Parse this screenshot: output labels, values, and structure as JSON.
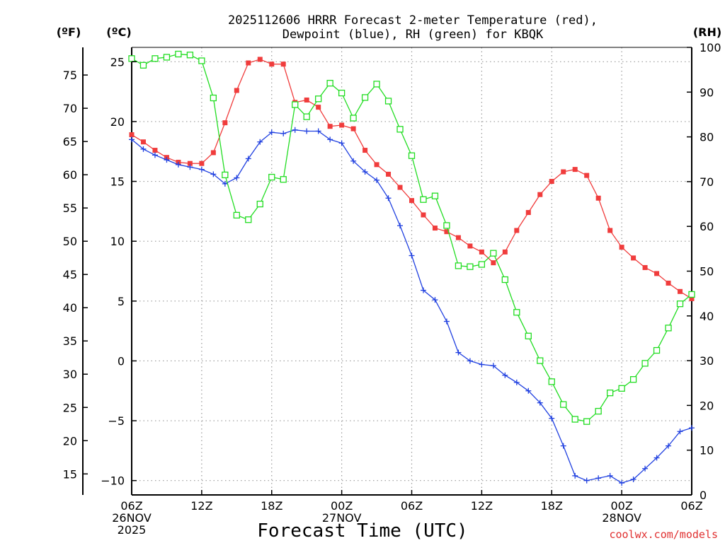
{
  "chart_data": {
    "type": "line",
    "title_line1": "2025112606 HRRR Forecast 2-meter Temperature (red),",
    "title_line2": "Dewpoint (blue), RH (green) for KBQK",
    "units": {
      "f": "(ºF)",
      "c": "(ºC)",
      "rh": "(RH)"
    },
    "xlabel": "Forecast Time (UTC)",
    "credit": "coolwx.com/models",
    "ylim_c": [
      -11.2,
      26.2
    ],
    "ylim_rh": [
      0,
      100
    ],
    "x_range_hours": [
      0,
      48
    ],
    "yticks_c": [
      {
        "v": 25,
        "label": "25"
      },
      {
        "v": 20,
        "label": "20"
      },
      {
        "v": 15,
        "label": "15"
      },
      {
        "v": 10,
        "label": "10"
      },
      {
        "v": 5,
        "label": "5"
      },
      {
        "v": 0,
        "label": "0"
      },
      {
        "v": -5,
        "label": "−5"
      },
      {
        "v": -10,
        "label": "−10"
      }
    ],
    "yticks_f": [
      {
        "v": 75,
        "label": "75"
      },
      {
        "v": 70,
        "label": "70"
      },
      {
        "v": 65,
        "label": "65"
      },
      {
        "v": 60,
        "label": "60"
      },
      {
        "v": 55,
        "label": "55"
      },
      {
        "v": 50,
        "label": "50"
      },
      {
        "v": 45,
        "label": "45"
      },
      {
        "v": 40,
        "label": "40"
      },
      {
        "v": 35,
        "label": "35"
      },
      {
        "v": 30,
        "label": "30"
      },
      {
        "v": 25,
        "label": "25"
      },
      {
        "v": 20,
        "label": "20"
      },
      {
        "v": 15,
        "label": "15"
      }
    ],
    "yticks_rh": [
      {
        "v": 100,
        "label": "100"
      },
      {
        "v": 90,
        "label": "90"
      },
      {
        "v": 80,
        "label": "80"
      },
      {
        "v": 70,
        "label": "70"
      },
      {
        "v": 60,
        "label": "60"
      },
      {
        "v": 50,
        "label": "50"
      },
      {
        "v": 40,
        "label": "40"
      },
      {
        "v": 30,
        "label": "30"
      },
      {
        "v": 20,
        "label": "20"
      },
      {
        "v": 10,
        "label": "10"
      },
      {
        "v": 0,
        "label": "0"
      }
    ],
    "xticks": [
      {
        "h": 0,
        "lines": [
          "06Z",
          "26NOV",
          "2025"
        ]
      },
      {
        "h": 6,
        "lines": [
          "12Z"
        ]
      },
      {
        "h": 12,
        "lines": [
          "18Z"
        ]
      },
      {
        "h": 18,
        "lines": [
          "00Z",
          "27NOV"
        ]
      },
      {
        "h": 24,
        "lines": [
          "06Z"
        ]
      },
      {
        "h": 30,
        "lines": [
          "12Z"
        ]
      },
      {
        "h": 36,
        "lines": [
          "18Z"
        ]
      },
      {
        "h": 42,
        "lines": [
          "00Z",
          "28NOV"
        ]
      },
      {
        "h": 48,
        "lines": [
          "06Z"
        ]
      }
    ],
    "hours": [
      0,
      1,
      2,
      3,
      4,
      5,
      6,
      7,
      8,
      9,
      10,
      11,
      12,
      13,
      14,
      15,
      16,
      17,
      18,
      19,
      20,
      21,
      22,
      23,
      24,
      25,
      26,
      27,
      28,
      29,
      30,
      31,
      32,
      33,
      34,
      35,
      36,
      37,
      38,
      39,
      40,
      41,
      42,
      43,
      44,
      45,
      46,
      47,
      48
    ],
    "series": [
      {
        "name": "2-meter Temperature",
        "axis": "c",
        "color": "#f03c3c",
        "marker": "filled-square",
        "values": [
          18.9,
          18.3,
          17.6,
          17.0,
          16.6,
          16.5,
          16.5,
          17.4,
          19.9,
          22.6,
          24.9,
          25.2,
          24.8,
          24.8,
          21.6,
          21.8,
          21.2,
          19.6,
          19.7,
          19.4,
          17.6,
          16.4,
          15.6,
          14.5,
          13.4,
          12.2,
          11.1,
          10.8,
          10.3,
          9.6,
          9.1,
          8.2,
          9.1,
          10.9,
          12.4,
          13.9,
          15.0,
          15.8,
          16.0,
          15.5,
          13.6,
          10.9,
          9.5,
          8.6,
          7.8,
          7.3,
          6.5,
          5.8,
          5.2
        ]
      },
      {
        "name": "Dewpoint",
        "axis": "c",
        "color": "#2040e0",
        "marker": "plus",
        "values": [
          18.5,
          17.7,
          17.2,
          16.8,
          16.4,
          16.2,
          16.0,
          15.6,
          14.8,
          15.3,
          16.9,
          18.3,
          19.1,
          19.0,
          19.3,
          19.2,
          19.2,
          18.5,
          18.2,
          16.7,
          15.8,
          15.1,
          13.6,
          11.3,
          8.8,
          5.9,
          5.1,
          3.3,
          0.7,
          0.0,
          -0.3,
          -0.4,
          -1.2,
          -1.8,
          -2.5,
          -3.5,
          -4.8,
          -7.1,
          -9.6,
          -10.0,
          -9.8,
          -9.6,
          -10.2,
          -9.9,
          -9.0,
          -8.1,
          -7.1,
          -5.9,
          -5.6
        ]
      },
      {
        "name": "RH",
        "axis": "rh",
        "color": "#22dd22",
        "marker": "open-square",
        "values": [
          97.5,
          96.0,
          97.5,
          97.8,
          98.5,
          98.3,
          97.0,
          88.7,
          71.5,
          62.5,
          61.5,
          65.0,
          71.0,
          70.5,
          87.2,
          84.5,
          88.5,
          92.0,
          89.8,
          84.2,
          88.8,
          91.8,
          88.0,
          81.7,
          75.8,
          66.0,
          66.8,
          60.2,
          51.2,
          51.0,
          51.5,
          54.0,
          48.1,
          40.8,
          35.5,
          30.0,
          25.3,
          20.2,
          16.9,
          16.4,
          18.7,
          22.8,
          23.8,
          25.8,
          29.4,
          32.3,
          37.3,
          42.7,
          44.8
        ]
      }
    ]
  }
}
